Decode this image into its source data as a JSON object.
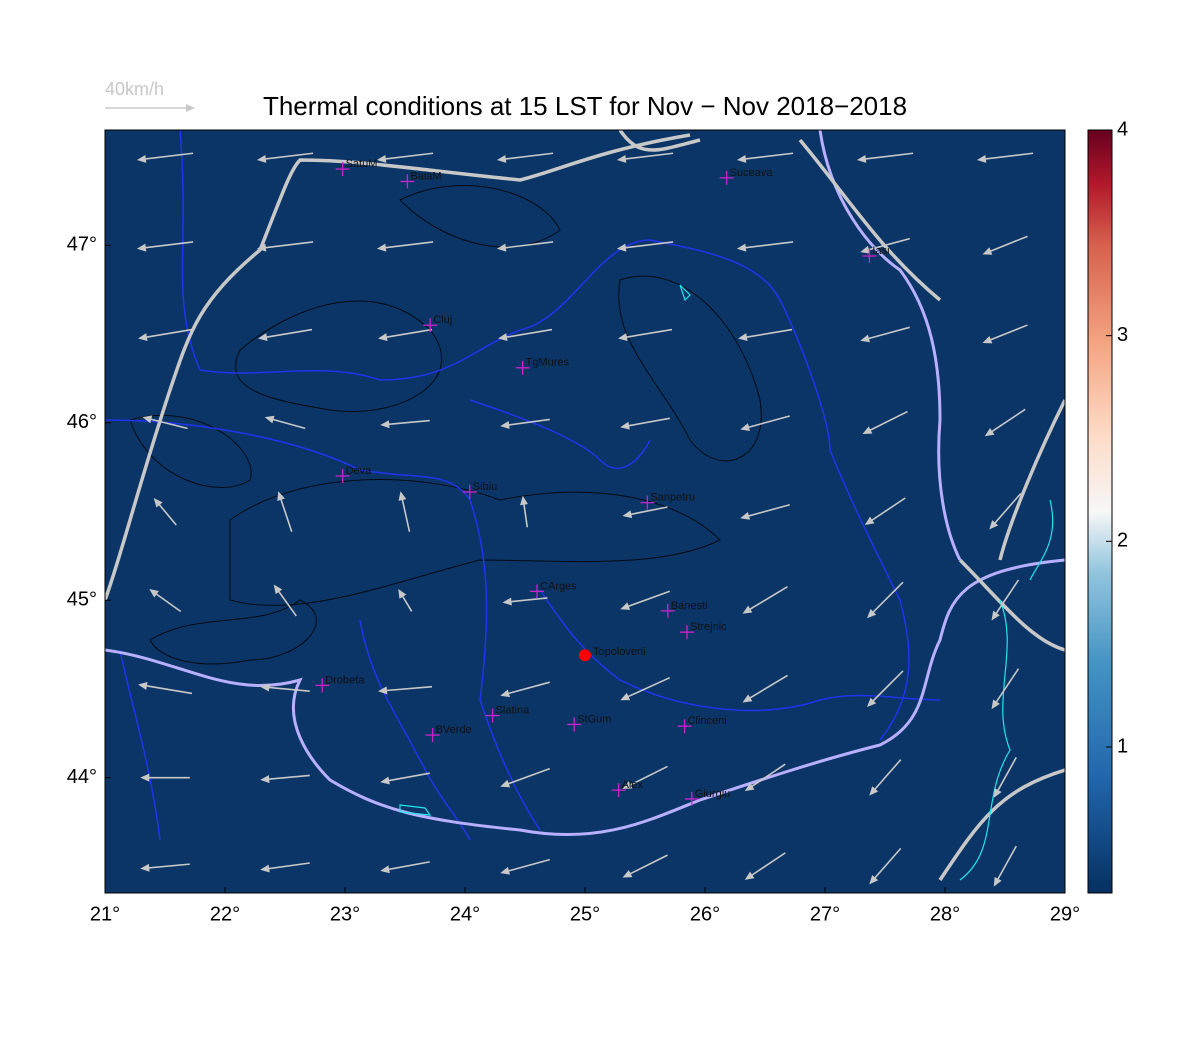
{
  "chart_data": {
    "type": "map",
    "title": "Thermal conditions at 15 LST for Nov − Nov  2018−2018",
    "xlim": [
      21,
      29
    ],
    "ylim": [
      43.35,
      47.65
    ],
    "xticks": [
      {
        "value": 21,
        "label": "21°"
      },
      {
        "value": 22,
        "label": "22°"
      },
      {
        "value": 23,
        "label": "23°"
      },
      {
        "value": 24,
        "label": "24°"
      },
      {
        "value": 25,
        "label": "25°"
      },
      {
        "value": 26,
        "label": "26°"
      },
      {
        "value": 27,
        "label": "27°"
      },
      {
        "value": 28,
        "label": "28°"
      },
      {
        "value": 29,
        "label": "29°"
      }
    ],
    "yticks": [
      {
        "value": 44,
        "label": "44°"
      },
      {
        "value": 45,
        "label": "45°"
      },
      {
        "value": 46,
        "label": "46°"
      },
      {
        "value": 47,
        "label": "47°"
      }
    ],
    "clim": [
      0.29,
      4
    ],
    "cticks": [
      1,
      2,
      3,
      4
    ],
    "wind_scale": {
      "value": 40,
      "label": "40km/h"
    },
    "wind_color": "#c8c8c8",
    "city_color": "#cc22cc",
    "cities": [
      {
        "name": "SatuM",
        "lon": 22.98,
        "lat": 47.43
      },
      {
        "name": "BaiaM",
        "lon": 23.52,
        "lat": 47.36
      },
      {
        "name": "Suceava",
        "lon": 26.18,
        "lat": 47.38
      },
      {
        "name": "Iasi",
        "lon": 27.37,
        "lat": 46.94
      },
      {
        "name": "Cluj",
        "lon": 23.71,
        "lat": 46.55
      },
      {
        "name": "TgMures",
        "lon": 24.48,
        "lat": 46.31
      },
      {
        "name": "Deva",
        "lon": 22.98,
        "lat": 45.7
      },
      {
        "name": "Sibiu",
        "lon": 24.04,
        "lat": 45.61
      },
      {
        "name": "Sanpetru",
        "lon": 25.52,
        "lat": 45.55
      },
      {
        "name": "CArges",
        "lon": 24.6,
        "lat": 45.05
      },
      {
        "name": "Banesti",
        "lon": 25.69,
        "lat": 44.94
      },
      {
        "name": "Strejnic",
        "lon": 25.85,
        "lat": 44.82
      },
      {
        "name": "Drobeta",
        "lon": 22.81,
        "lat": 44.52
      },
      {
        "name": "Slatina",
        "lon": 24.23,
        "lat": 44.35
      },
      {
        "name": "StGum",
        "lon": 24.91,
        "lat": 44.3
      },
      {
        "name": "Clinceni",
        "lon": 25.83,
        "lat": 44.29
      },
      {
        "name": "BVerde",
        "lon": 23.73,
        "lat": 44.24
      },
      {
        "name": "Alex",
        "lon": 25.28,
        "lat": 43.93
      },
      {
        "name": "Giurgiu",
        "lon": 25.89,
        "lat": 43.88
      }
    ],
    "station": {
      "name": "Topoloveni",
      "lon": 25.0,
      "lat": 44.69,
      "color": "#ff0000"
    },
    "wind": {
      "lons": [
        21.5,
        22.5,
        23.5,
        24.5,
        25.5,
        26.5,
        27.5,
        28.5
      ],
      "lats": [
        47.5,
        47,
        46.5,
        46,
        45.5,
        45,
        44.5,
        44,
        43.5
      ],
      "u": [
        [
          -25,
          -25,
          -25,
          -25,
          -25,
          -25,
          -25,
          -25
        ],
        [
          -25,
          -25,
          -25,
          -25,
          -25,
          -25,
          -22,
          -20
        ],
        [
          -24,
          -24,
          -24,
          -24,
          -24,
          -24,
          -22,
          -20
        ],
        [
          -20,
          -18,
          -22,
          -22,
          -22,
          -22,
          -20,
          -18
        ],
        [
          -10,
          -6,
          -4,
          -2,
          -20,
          -22,
          -18,
          -14
        ],
        [
          -14,
          -10,
          -6,
          -20,
          -22,
          -20,
          -16,
          -12
        ],
        [
          -24,
          -22,
          -24,
          -22,
          -22,
          -20,
          -16,
          -12
        ],
        [
          -22,
          -22,
          -22,
          -22,
          -20,
          -18,
          -14,
          -10
        ],
        [
          -22,
          -22,
          -22,
          -22,
          -20,
          -18,
          -14,
          -10
        ]
      ],
      "v": [
        [
          -3,
          -3,
          -3,
          -3,
          -3,
          -3,
          -3,
          -3
        ],
        [
          -3,
          -3,
          -3,
          -3,
          -3,
          -3,
          -6,
          -8
        ],
        [
          -4,
          -4,
          -4,
          -4,
          -4,
          -4,
          -6,
          -8
        ],
        [
          5,
          5,
          -2,
          -3,
          -4,
          -6,
          -10,
          -12
        ],
        [
          12,
          18,
          18,
          14,
          -4,
          -6,
          -12,
          -16
        ],
        [
          10,
          14,
          10,
          -2,
          -8,
          -12,
          -16,
          -18
        ],
        [
          4,
          2,
          -2,
          -6,
          -10,
          -12,
          -16,
          -18
        ],
        [
          0,
          -2,
          -4,
          -8,
          -10,
          -12,
          -16,
          -18
        ],
        [
          -2,
          -3,
          -4,
          -6,
          -10,
          -12,
          -16,
          -18
        ]
      ]
    }
  }
}
